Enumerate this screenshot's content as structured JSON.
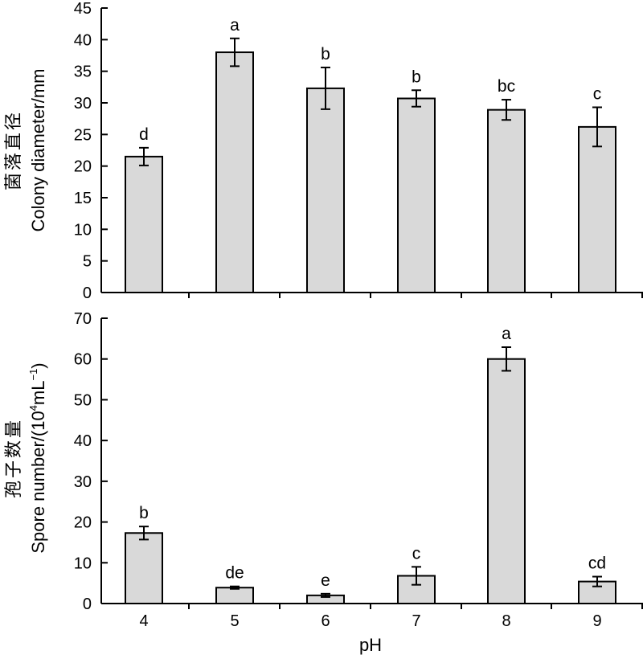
{
  "chart_data": [
    {
      "type": "bar",
      "categories": [
        "4",
        "5",
        "6",
        "7",
        "8",
        "9"
      ],
      "values": [
        21.5,
        38.0,
        32.3,
        30.7,
        28.9,
        26.2
      ],
      "errors": [
        1.4,
        2.2,
        3.3,
        1.3,
        1.6,
        3.1
      ],
      "significance": [
        "d",
        "a",
        "b",
        "b",
        "bc",
        "c"
      ],
      "ylabel_cn": "菌落直径",
      "ylabel_en": "Colony diameter/mm",
      "ylim": [
        0,
        45
      ],
      "yticks": [
        0,
        5,
        10,
        15,
        20,
        25,
        30,
        35,
        40,
        45
      ],
      "grid": false,
      "bar_color": "#d9d9d9"
    },
    {
      "type": "bar",
      "categories": [
        "4",
        "5",
        "6",
        "7",
        "8",
        "9"
      ],
      "values": [
        17.3,
        3.9,
        2.0,
        6.8,
        60.0,
        5.4
      ],
      "errors": [
        1.6,
        0.3,
        0.4,
        2.2,
        2.9,
        1.2
      ],
      "significance": [
        "b",
        "de",
        "e",
        "c",
        "a",
        "cd"
      ],
      "ylabel_cn": "孢子数量",
      "ylabel_en_prefix": "Spore number/(10",
      "ylabel_en_sup1": "4",
      "ylabel_en_mid": "mL",
      "ylabel_en_sup2": "−1",
      "ylabel_en_suffix": ")",
      "xlabel": "pH",
      "ylim": [
        0,
        70
      ],
      "yticks": [
        0,
        10,
        20,
        30,
        40,
        50,
        60,
        70
      ],
      "grid": false,
      "bar_color": "#d9d9d9"
    }
  ]
}
